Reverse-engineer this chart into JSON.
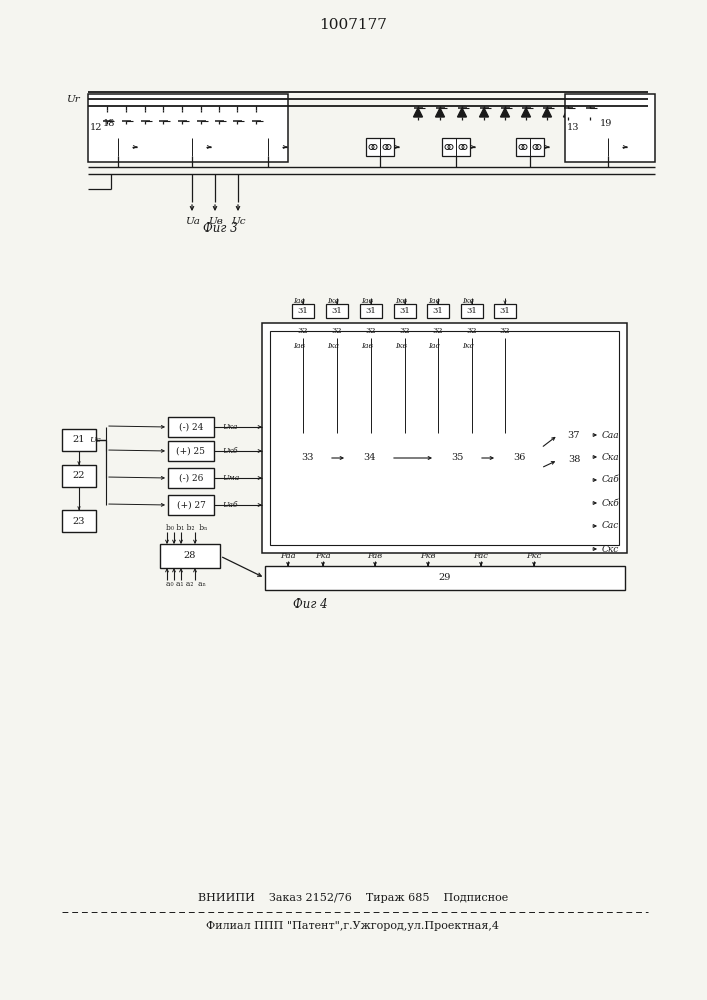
{
  "title": "1007177",
  "fig3_caption": "Фиг 3",
  "fig4_caption": "Фиг 4",
  "footer_line1": "ВНИИПИ    Заказ 2152/76    Тираж 685    Подписное",
  "footer_line2": "Филиал ППП \"Патент\",г.Ужгород,ул.Проектная,4",
  "bg_color": "#f5f5f0"
}
